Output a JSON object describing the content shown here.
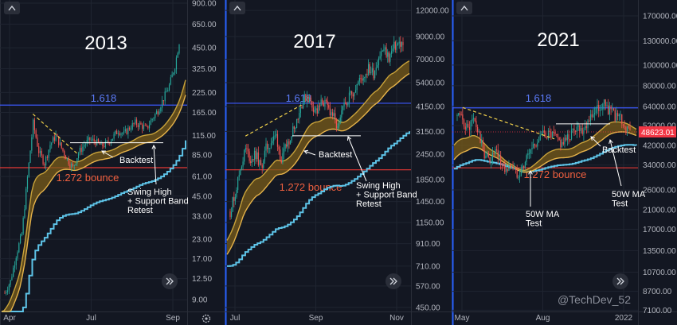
{
  "colors": {
    "background": "#131722",
    "grid": "#1f2430",
    "divider": "#2a2e39",
    "axis_text": "#b2b5be",
    "title": "#ffffff",
    "up": "#26a69a",
    "down": "#ef5350",
    "fib_1618": "#3d5afe",
    "fib_1272": "#e53935",
    "fib_text_1618": "#5c7cfa",
    "fib_text_1272": "#f0603f",
    "band_fill": "#7a5c1a",
    "band_top": "#c8a23a",
    "band_bottom": "#e6b34a",
    "ma_50w": "#5ec4e8",
    "trendline": "#f2d24b",
    "annotation": "#ffffff",
    "price_tag": "#f23645",
    "panel_left_border": "#2962ff"
  },
  "icons": {
    "collapse": "chevron-up-icon",
    "scroll_right": "double-chevron-right-icon",
    "settings": "gear-icon"
  },
  "watermark": "@TechDev_52",
  "chart_data": [
    {
      "type": "line",
      "title": "2013",
      "y_scale": "log",
      "ylim": [
        7.5,
        900
      ],
      "y_ticks": [
        "900.00",
        "650.00",
        "450.00",
        "325.00",
        "225.00",
        "165.00",
        "115.00",
        "85.00",
        "61.00",
        "45.00",
        "33.00",
        "23.00",
        "17.00",
        "12.50",
        "9.00"
      ],
      "x_ticks": [
        "Apr",
        "Jul",
        "Sep"
      ],
      "series": [
        {
          "name": "",
          "values": [
            10,
            12,
            18,
            25,
            60,
            140,
            90,
            75,
            100,
            115,
            95,
            80,
            70,
            88,
            100,
            108,
            105,
            98,
            102,
            112,
            125,
            118,
            130,
            140,
            135,
            128,
            150,
            170,
            205,
            250,
            340,
            560
          ]
        }
      ],
      "levels": [
        {
          "label": "1.618",
          "value": 185
        },
        {
          "label": "1.272 bounce",
          "value": 70
        }
      ],
      "annotations": [
        "Backtest",
        "Swing High\n+ Support Band\nRetest"
      ]
    },
    {
      "type": "line",
      "title": "2017",
      "y_scale": "log",
      "ylim": [
        430,
        13000
      ],
      "y_ticks": [
        "12000.00",
        "9000.00",
        "7000.00",
        "5400.00",
        "4150.00",
        "3150.00",
        "2450.00",
        "1850.00",
        "1450.00",
        "1150.00",
        "910.00",
        "710.00",
        "570.00",
        "450.00"
      ],
      "x_ticks": [
        "Jul",
        "Sep",
        "Nov"
      ],
      "series": [
        {
          "name": "",
          "values": [
            1300,
            1600,
            2100,
            2600,
            2300,
            2450,
            2100,
            2600,
            2800,
            3000,
            2250,
            2700,
            3100,
            3600,
            4300,
            4700,
            4200,
            3900,
            4400,
            4100,
            3800,
            3200,
            4000,
            4600,
            4900,
            5400,
            5800,
            6300,
            6000,
            7200,
            7800,
            7100,
            8000,
            8300,
            8200
          ]
        }
      ],
      "levels": [
        {
          "label": "1.618",
          "value": 4300
        },
        {
          "label": "1.272 bounce",
          "value": 2060
        }
      ],
      "annotations": [
        "Backtest",
        "Swing High\n+ Support Band\nRetest"
      ]
    },
    {
      "type": "line",
      "title": "2021",
      "y_scale": "log",
      "ylim": [
        7000,
        195000
      ],
      "y_ticks": [
        "170000.00",
        "130000.00",
        "100000.00",
        "80000.00",
        "64000.00",
        "52000.00",
        "42000.00",
        "34000.00",
        "26000.00",
        "21000.00",
        "17000.00",
        "13500.00",
        "10700.00",
        "8700.00",
        "7100.00"
      ],
      "x_ticks": [
        "May",
        "Aug",
        "2022"
      ],
      "last_price": "48623.01",
      "series": [
        {
          "name": "",
          "values": [
            58000,
            55000,
            50000,
            56000,
            47000,
            38000,
            36000,
            39000,
            35000,
            32000,
            34000,
            31000,
            33000,
            38000,
            42000,
            45000,
            48000,
            47000,
            46000,
            43000,
            44000,
            48000,
            52000,
            50000,
            55000,
            60000,
            63000,
            66000,
            61000,
            58000,
            56000,
            50000,
            48623
          ]
        }
      ],
      "levels": [
        {
          "label": "1.618",
          "value": 63000
        },
        {
          "label": "1.272 bounce",
          "value": 33000
        }
      ],
      "annotations": [
        "Backtest",
        "50W MA\nTest",
        "50W MA\nTest"
      ]
    }
  ]
}
